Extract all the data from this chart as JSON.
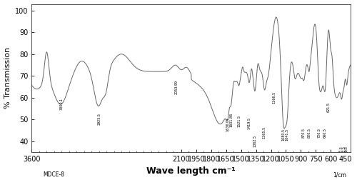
{
  "xlim": [
    3600,
    400
  ],
  "ylim": [
    35,
    103
  ],
  "xlabel": "Wave length cm⁻¹",
  "ylabel": "% Transmission",
  "xlabel_fontsize": 9,
  "ylabel_fontsize": 8,
  "tick_fontsize": 7,
  "bg_color": "#ffffff",
  "line_color": "#666666",
  "xticks": [
    3600,
    2100,
    1950,
    1800,
    1650,
    1500,
    1350,
    1200,
    1050,
    900,
    750,
    600,
    450
  ],
  "yticks": [
    40,
    50,
    60,
    70,
    80,
    90,
    100
  ],
  "left_label": "MDCE-8",
  "right_label": "1/cm"
}
